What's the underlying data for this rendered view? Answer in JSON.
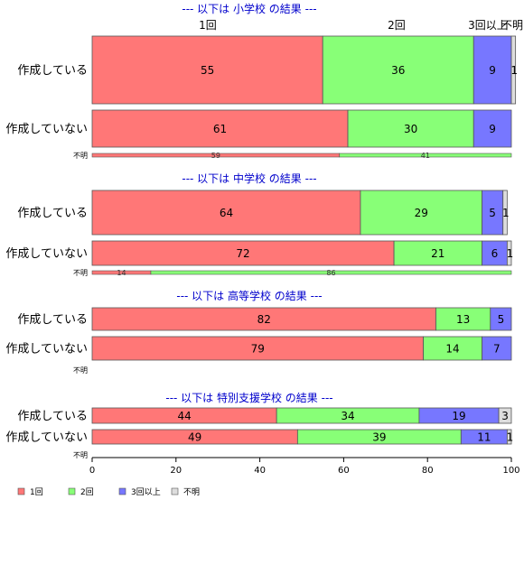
{
  "chart_data": {
    "type": "bar",
    "orientation": "horizontal",
    "stacked": true,
    "xlim": [
      0,
      100
    ],
    "x_ticks": [
      "0",
      "20",
      "40",
      "60",
      "80",
      "100"
    ],
    "category_labels": [
      "1回",
      "2回",
      "3回以上",
      "不明"
    ],
    "legend": {
      "placement": "bottom-left",
      "entries": [
        "1回",
        "2回",
        "3回以上",
        "不明"
      ]
    },
    "top_labels": [
      "1回",
      "2回",
      "3回以上",
      "不明"
    ],
    "colors": [
      "#ff7777",
      "#88ff77",
      "#7777ff",
      "#dddddd"
    ],
    "panels": [
      {
        "title": "--- 以下は 小学校 の結果 ---",
        "rows": [
          {
            "label": "作成している",
            "values": [
              55,
              36,
              9,
              1
            ],
            "value_labels": [
              "55",
              "36",
              "9",
              "1"
            ]
          },
          {
            "label": "作成していない",
            "values": [
              61,
              30,
              9,
              0
            ],
            "value_labels": [
              "61",
              "30",
              "9",
              ""
            ]
          },
          {
            "label": "不明",
            "values": [
              59,
              41,
              0,
              0
            ],
            "value_labels": [
              "59",
              "41",
              "",
              ""
            ],
            "small": true
          }
        ]
      },
      {
        "title": "--- 以下は 中学校 の結果 ---",
        "rows": [
          {
            "label": "作成している",
            "values": [
              64,
              29,
              5,
              1
            ],
            "value_labels": [
              "64",
              "29",
              "5",
              "1"
            ]
          },
          {
            "label": "作成していない",
            "values": [
              72,
              21,
              6,
              1
            ],
            "value_labels": [
              "72",
              "21",
              "6",
              "1"
            ]
          },
          {
            "label": "不明",
            "values": [
              14,
              86,
              0,
              0
            ],
            "value_labels": [
              "14",
              "86",
              "",
              ""
            ],
            "small": true
          }
        ]
      },
      {
        "title": "--- 以下は 高等学校 の結果 ---",
        "rows": [
          {
            "label": "作成している",
            "values": [
              82,
              13,
              5,
              0
            ],
            "value_labels": [
              "82",
              "13",
              "5",
              ""
            ]
          },
          {
            "label": "作成していない",
            "values": [
              79,
              14,
              7,
              0
            ],
            "value_labels": [
              "79",
              "14",
              "7",
              ""
            ]
          },
          {
            "label": "不明",
            "values": [],
            "value_labels": [],
            "small": true
          }
        ]
      },
      {
        "title": "--- 以下は 特別支援学校 の結果 ---",
        "rows": [
          {
            "label": "作成している",
            "values": [
              44,
              34,
              19,
              3
            ],
            "value_labels": [
              "44",
              "34",
              "19",
              "3"
            ]
          },
          {
            "label": "作成していない",
            "values": [
              49,
              39,
              11,
              1
            ],
            "value_labels": [
              "49",
              "39",
              "11",
              "1"
            ]
          },
          {
            "label": "不明",
            "values": [],
            "value_labels": [],
            "small": true
          }
        ]
      }
    ]
  }
}
